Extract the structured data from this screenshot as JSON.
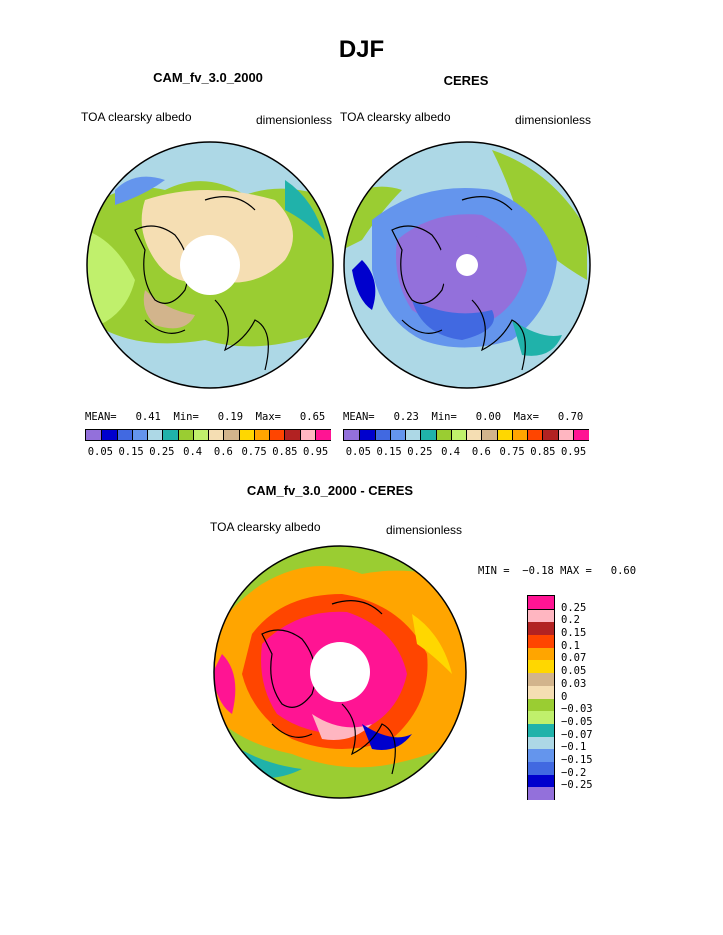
{
  "title": "DJF",
  "panels": [
    {
      "title": "CAM_fv_3.0_2000",
      "left_label": "TOA clearsky albedo",
      "right_label": "dimensionless",
      "stats": "MEAN=   0.41  Min=   0.19  Max=   0.65"
    },
    {
      "title": "CERES",
      "left_label": "TOA clearsky albedo",
      "right_label": "dimensionless",
      "stats": "MEAN=   0.23  Min=   0.00  Max=   0.70"
    }
  ],
  "diff_panel": {
    "title": "CAM_fv_3.0_2000 - CERES",
    "left_label": "TOA clearsky albedo",
    "right_label": "dimensionless",
    "stats": "MIN =  −0.18 MAX =   0.60"
  },
  "colorbar_top": {
    "colors": [
      "#9370db",
      "#0000cd",
      "#4169e1",
      "#6495ed",
      "#add8e6",
      "#20b2aa",
      "#9acd32",
      "#c0f06c",
      "#f5deb3",
      "#d2b48c",
      "#ffd700",
      "#ffa500",
      "#ff4500",
      "#b22222",
      "#ffb6c1",
      "#ff1493"
    ],
    "labels": [
      "0.05",
      "0.15",
      "0.25",
      "0.4",
      "0.6",
      "0.75",
      "0.85",
      "0.95"
    ]
  },
  "colorbar_diff": {
    "colors": [
      "#9370db",
      "#0000cd",
      "#4169e1",
      "#6495ed",
      "#add8e6",
      "#20b2aa",
      "#c0f06c",
      "#9acd32",
      "#f5deb3",
      "#d2b48c",
      "#ffd700",
      "#ffa500",
      "#ff4500",
      "#b22222",
      "#ffb6c1",
      "#ff1493"
    ],
    "labels": [
      "−0.25",
      "−0.2",
      "−0.15",
      "−0.1",
      "−0.07",
      "−0.05",
      "−0.03",
      "0",
      "0.03",
      "0.05",
      "0.07",
      "0.1",
      "0.15",
      "0.2",
      "0.25"
    ]
  },
  "chart_data": {
    "type": "heatmap",
    "projection": "north polar stereographic",
    "season": "DJF",
    "variable": "TOA clearsky albedo",
    "units": "dimensionless",
    "panels": [
      {
        "name": "CAM_fv_3.0_2000",
        "mean": 0.41,
        "min": 0.19,
        "max": 0.65
      },
      {
        "name": "CERES",
        "mean": 0.23,
        "min": 0.0,
        "max": 0.7
      },
      {
        "name": "CAM_fv_3.0_2000 - CERES",
        "min": -0.18,
        "max": 0.6
      }
    ],
    "contour_levels_fields": [
      0.05,
      0.1,
      0.15,
      0.2,
      0.25,
      0.3,
      0.4,
      0.5,
      0.6,
      0.7,
      0.75,
      0.8,
      0.85,
      0.9,
      0.95
    ],
    "contour_levels_diff": [
      -0.25,
      -0.2,
      -0.15,
      -0.1,
      -0.07,
      -0.05,
      -0.03,
      0,
      0.03,
      0.05,
      0.07,
      0.1,
      0.15,
      0.2,
      0.25
    ]
  }
}
